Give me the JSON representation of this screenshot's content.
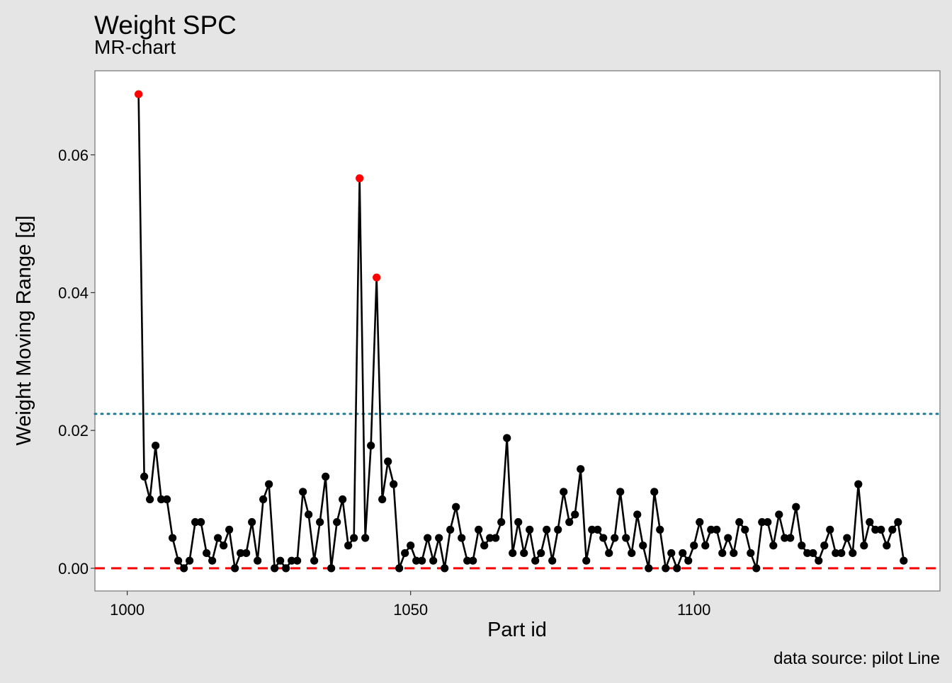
{
  "chart_data": {
    "type": "line",
    "title": "Weight SPC",
    "subtitle": "MR-chart",
    "xlabel": "Part id",
    "ylabel": "Weight Moving Range [g]",
    "caption": "data source: pilot Line",
    "xlim": [
      994.3,
      1143.4
    ],
    "ylim": [
      -0.0033,
      0.0722
    ],
    "x_ticks": [
      {
        "v": 1000,
        "label": "1000"
      },
      {
        "v": 1050,
        "label": "1050"
      },
      {
        "v": 1100,
        "label": "1100"
      }
    ],
    "y_ticks": [
      {
        "v": 0.0,
        "label": "0.00"
      },
      {
        "v": 0.02,
        "label": "0.02"
      },
      {
        "v": 0.04,
        "label": "0.04"
      },
      {
        "v": 0.06,
        "label": "0.06"
      }
    ],
    "grid": false,
    "control_limits": {
      "ucl": 0.0224,
      "lcl": 0.0,
      "ucl_color": "#1f7a94",
      "lcl_color": "#ff0000"
    },
    "colors": {
      "in_control": "#000000",
      "out_of_control": "#ff0000",
      "line": "#000000",
      "panel": "#ffffff",
      "background": "#e5e5e5"
    },
    "x_start": 1002,
    "values": [
      0.0688,
      0.0133,
      0.01,
      0.0178,
      0.01,
      0.01,
      0.0044,
      0.0011,
      0.0,
      0.0011,
      0.0067,
      0.0067,
      0.0022,
      0.0011,
      0.0044,
      0.0033,
      0.0056,
      0.0,
      0.0022,
      0.0022,
      0.0067,
      0.0011,
      0.01,
      0.0122,
      0.0,
      0.0011,
      0.0,
      0.0011,
      0.0011,
      0.0111,
      0.0078,
      0.0011,
      0.0067,
      0.0133,
      0.0,
      0.0067,
      0.01,
      0.0033,
      0.0044,
      0.0566,
      0.0044,
      0.0178,
      0.0422,
      0.01,
      0.0155,
      0.0122,
      0.0,
      0.0022,
      0.0033,
      0.0011,
      0.0011,
      0.0044,
      0.0011,
      0.0044,
      0.0,
      0.0056,
      0.0089,
      0.0044,
      0.0011,
      0.0011,
      0.0056,
      0.0033,
      0.0044,
      0.0044,
      0.0067,
      0.0189,
      0.0022,
      0.0067,
      0.0022,
      0.0056,
      0.0011,
      0.0022,
      0.0056,
      0.0011,
      0.0056,
      0.0111,
      0.0067,
      0.0078,
      0.0144,
      0.0011,
      0.0056,
      0.0056,
      0.0044,
      0.0022,
      0.0044,
      0.0111,
      0.0044,
      0.0022,
      0.0078,
      0.0033,
      0.0,
      0.0111,
      0.0056,
      0.0,
      0.0022,
      0.0,
      0.0022,
      0.0011,
      0.0033,
      0.0067,
      0.0033,
      0.0056,
      0.0056,
      0.0022,
      0.0044,
      0.0022,
      0.0067,
      0.0056,
      0.0022,
      0.0,
      0.0067,
      0.0067,
      0.0033,
      0.0078,
      0.0044,
      0.0044,
      0.0089,
      0.0033,
      0.0022,
      0.0022,
      0.0011,
      0.0033,
      0.0056,
      0.0022,
      0.0022,
      0.0044,
      0.0022,
      0.0122,
      0.0033,
      0.0067,
      0.0056,
      0.0056,
      0.0033,
      0.0056,
      0.0067,
      0.0011
    ]
  }
}
